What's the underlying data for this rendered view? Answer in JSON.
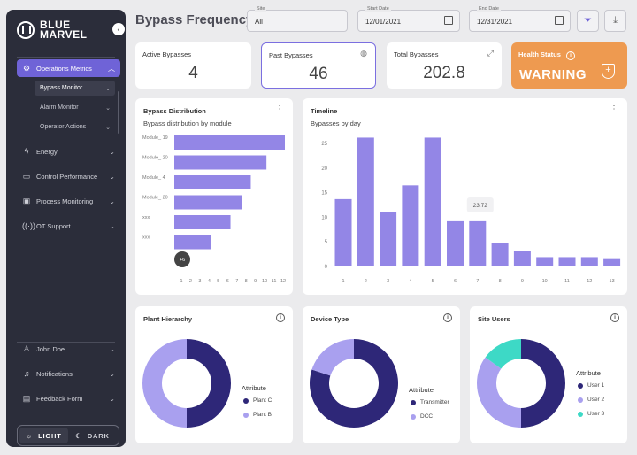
{
  "app": {
    "logo_line1": "BLUE",
    "logo_line2": "MARVEL"
  },
  "colors": {
    "accent": "#6f63d7",
    "bar": "#9386e6",
    "dark_purple": "#2e2778",
    "light_purple": "#a9a0ef",
    "teal": "#3dd9c6",
    "warning": "#ee9a50"
  },
  "sidebar": {
    "items": [
      {
        "label": "Operations Metrics",
        "icon": "metrics-icon"
      },
      {
        "label": "Energy",
        "icon": "energy-icon"
      },
      {
        "label": "Control Performance",
        "icon": "control-icon"
      },
      {
        "label": "Process Monitoring",
        "icon": "process-icon"
      },
      {
        "label": "OT Support",
        "icon": "antenna-icon"
      }
    ],
    "sub_items": [
      {
        "label": "Bypass Monitor"
      },
      {
        "label": "Alarm Monitor"
      },
      {
        "label": "Operator Actions"
      }
    ],
    "bottom": [
      {
        "label": "John Doe",
        "icon": "user-icon"
      },
      {
        "label": "Notifications",
        "icon": "bell-icon"
      },
      {
        "label": "Feedback Form",
        "icon": "form-icon"
      }
    ],
    "theme": {
      "light": "LIGHT",
      "dark": "DARK"
    }
  },
  "header": {
    "title": "Bypass Frequency",
    "site": {
      "label": "Site",
      "value": "All"
    },
    "start_date": {
      "label": "Start Date",
      "value": "12/01/2021"
    },
    "end_date": {
      "label": "End Date",
      "value": "12/31/2021"
    }
  },
  "kpis": {
    "active": {
      "label": "Active Bypasses",
      "value": "4"
    },
    "past": {
      "label": "Past Bypasses",
      "value": "46"
    },
    "total": {
      "label": "Total Bypasses",
      "value": "202.8"
    },
    "health": {
      "label": "Health Status",
      "value": "WARNING"
    }
  },
  "bypass_distribution": {
    "title": "Bypass Distribution",
    "subtitle": "Bypass distribution by module"
  },
  "timeline": {
    "title": "Timeline",
    "subtitle": "Bypasses by day",
    "tooltip": "23.72"
  },
  "plant_hierarchy": {
    "title": "Plant Hierarchy",
    "legend_title": "Attribute"
  },
  "device_type": {
    "title": "Device Type",
    "legend_title": "Attribute"
  },
  "site_users": {
    "title": "Site Users",
    "legend_title": "Attribute"
  },
  "chart_data": [
    {
      "id": "bypass_distribution",
      "type": "bar",
      "orientation": "horizontal",
      "title": "Bypass Distribution",
      "subtitle": "Bypass distribution by module",
      "categories": [
        "Module_ 19",
        "Module_ 20",
        "Module_ 4",
        "Module_ 20",
        "xxx",
        "xxx"
      ],
      "values": [
        12,
        10,
        8.3,
        7.3,
        6.1,
        4
      ],
      "more_label": "+6",
      "x_ticks": [
        "1",
        "2",
        "3",
        "4",
        "5",
        "6",
        "7",
        "8",
        "9",
        "10",
        "11",
        "12"
      ],
      "xlim": [
        0,
        12
      ]
    },
    {
      "id": "timeline",
      "type": "bar",
      "title": "Timeline",
      "subtitle": "Bypasses by day",
      "categories": [
        "1",
        "2",
        "3",
        "4",
        "5",
        "6",
        "7",
        "8",
        "9",
        "10",
        "11",
        "12",
        "13"
      ],
      "values": [
        13.7,
        26.2,
        11,
        16.5,
        26.2,
        9.2,
        9.2,
        4.8,
        3.1,
        1.9,
        1.9,
        1.9,
        1.5
      ],
      "highlight_label": "23.72",
      "y_ticks": [
        "0",
        "5",
        "10",
        "15",
        "20",
        "25"
      ],
      "ylim": [
        0,
        27
      ]
    },
    {
      "id": "plant_hierarchy",
      "type": "pie",
      "title": "Plant Hierarchy",
      "legend_title": "Attribute",
      "labels": [
        "Plant C",
        "Plant B"
      ],
      "values": [
        50,
        50
      ],
      "colors": [
        "#2e2778",
        "#a9a0ef"
      ]
    },
    {
      "id": "device_type",
      "type": "pie",
      "title": "Device Type",
      "legend_title": "Attribute",
      "labels": [
        "Transmitter",
        "DCC"
      ],
      "values": [
        80,
        20
      ],
      "colors": [
        "#2e2778",
        "#a9a0ef"
      ]
    },
    {
      "id": "site_users",
      "type": "pie",
      "title": "Site Users",
      "legend_title": "Attribute",
      "labels": [
        "User 1",
        "User 2",
        "User 3"
      ],
      "values": [
        50,
        35,
        15
      ],
      "colors": [
        "#2e2778",
        "#a9a0ef",
        "#3dd9c6"
      ]
    }
  ]
}
